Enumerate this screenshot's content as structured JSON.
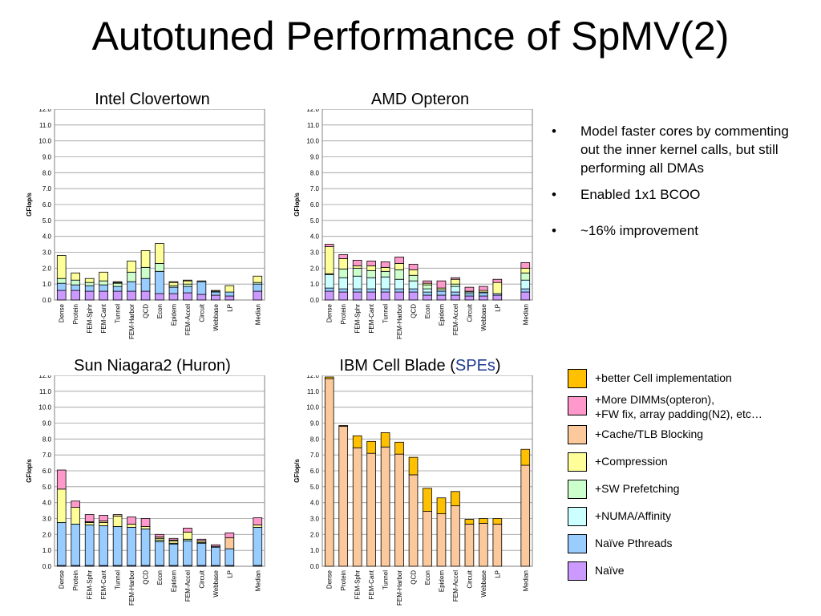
{
  "title": "Autotuned Performance of SpMV(2)",
  "bullets": [
    "Model faster cores by commenting out the inner kernel calls, but still performing all DMAs",
    "Enabled 1x1 BCOO",
    "~16% improvement"
  ],
  "legend": [
    {
      "label": "+better Cell implementation",
      "color": "#ffc000"
    },
    {
      "label": "+More DIMMs(opteron),\n+FW fix, array padding(N2), etc…",
      "color": "#ff99cc"
    },
    {
      "label": "+Cache/TLB Blocking",
      "color": "#fcc99c"
    },
    {
      "label": "+Compression",
      "color": "#ffff99"
    },
    {
      "label": "+SW Prefetching",
      "color": "#ccffcc"
    },
    {
      "label": "+NUMA/Affinity",
      "color": "#ccffff"
    },
    {
      "label": "Naïve Pthreads",
      "color": "#99ccff"
    },
    {
      "label": "Naïve",
      "color": "#cc99ff"
    }
  ],
  "chart_data": [
    {
      "type": "bar",
      "stacked": true,
      "title": "Intel Clovertown",
      "ylabel": "GFlop/s",
      "ylim": [
        0,
        12
      ],
      "grid": true,
      "categories": [
        "Dense",
        "Protein",
        "FEM-Sphr",
        "FEM-Cant",
        "Tunnel",
        "FEM-Harbor",
        "QCD",
        "Econ",
        "Epidem",
        "FEM-Accel",
        "Circuit",
        "Webbase",
        "LP",
        "Median"
      ],
      "series": [
        {
          "name": "Naïve",
          "values": [
            0.6,
            0.6,
            0.55,
            0.55,
            0.55,
            0.55,
            0.55,
            0.4,
            0.4,
            0.45,
            0.35,
            0.3,
            0.25,
            0.55
          ]
        },
        {
          "name": "Naïve Pthreads",
          "values": [
            0.45,
            0.35,
            0.35,
            0.4,
            0.3,
            0.6,
            0.8,
            1.4,
            0.4,
            0.4,
            0.8,
            0.2,
            0.25,
            0.45
          ]
        },
        {
          "name": "+NUMA/Affinity",
          "values": [
            0,
            0,
            0,
            0,
            0,
            0,
            0,
            0,
            0,
            0,
            0,
            0,
            0,
            0
          ]
        },
        {
          "name": "+SW Prefetching",
          "values": [
            0.3,
            0.3,
            0.2,
            0.25,
            0.2,
            0.6,
            0.7,
            0.5,
            0.1,
            0.15,
            0,
            0.05,
            0,
            0.1
          ]
        },
        {
          "name": "+Compression",
          "values": [
            1.45,
            0.45,
            0.25,
            0.55,
            0.05,
            0.7,
            1.05,
            1.25,
            0.2,
            0.2,
            0.05,
            0.05,
            0.4,
            0.4
          ]
        },
        {
          "name": "+Cache/TLB Blocking",
          "values": [
            0,
            0,
            0,
            0,
            0.05,
            0,
            0,
            0,
            0.05,
            0.05,
            0,
            0,
            0,
            0
          ]
        },
        {
          "name": "+More DIMMs(opteron), +FW fix, array padding(N2), etc…",
          "values": [
            0,
            0,
            0,
            0,
            0,
            0,
            0,
            0,
            0,
            0,
            0,
            0,
            0,
            0
          ]
        },
        {
          "name": "+better Cell implementation",
          "values": [
            0,
            0,
            0,
            0,
            0,
            0,
            0,
            0,
            0,
            0,
            0,
            0,
            0,
            0
          ]
        }
      ]
    },
    {
      "type": "bar",
      "stacked": true,
      "title": "AMD Opteron",
      "ylabel": "GFlop/s",
      "ylim": [
        0,
        12
      ],
      "grid": true,
      "categories": [
        "Dense",
        "Protein",
        "FEM-Sphr",
        "FEM-Cant",
        "Tunnel",
        "FEM-Harbor",
        "QCD",
        "Econ",
        "Epidem",
        "FEM-Accel",
        "Circuit",
        "Webbase",
        "LP",
        "Median"
      ],
      "series": [
        {
          "name": "Naïve",
          "values": [
            0.55,
            0.5,
            0.5,
            0.5,
            0.5,
            0.5,
            0.5,
            0.3,
            0.3,
            0.3,
            0.25,
            0.25,
            0.3,
            0.5
          ]
        },
        {
          "name": "Naïve Pthreads",
          "values": [
            0.2,
            0.2,
            0.2,
            0.2,
            0.2,
            0.2,
            0.2,
            0.2,
            0.25,
            0.2,
            0.15,
            0.2,
            0.1,
            0.2
          ]
        },
        {
          "name": "+NUMA/Affinity",
          "values": [
            0.85,
            0.7,
            0.8,
            0.7,
            0.75,
            0.6,
            0.5,
            0.2,
            0.1,
            0.35,
            0.1,
            0.05,
            0,
            0.55
          ]
        },
        {
          "name": "+SW Prefetching",
          "values": [
            0.05,
            0.55,
            0.5,
            0.45,
            0.35,
            0.6,
            0.35,
            0.25,
            0,
            0.15,
            0,
            0,
            0,
            0.45
          ]
        },
        {
          "name": "+Compression",
          "values": [
            1.7,
            0.65,
            0.15,
            0.3,
            0.25,
            0.4,
            0.35,
            0.1,
            0.1,
            0.3,
            0.05,
            0.1,
            0.7,
            0.3
          ]
        },
        {
          "name": "+Cache/TLB Blocking",
          "values": [
            0,
            0,
            0,
            0,
            0,
            0,
            0,
            0,
            0,
            0,
            0,
            0,
            0,
            0
          ]
        },
        {
          "name": "+More DIMMs(opteron), +FW fix, array padding(N2), etc…",
          "values": [
            0.15,
            0.25,
            0.35,
            0.3,
            0.35,
            0.4,
            0.35,
            0.15,
            0.45,
            0.1,
            0.25,
            0.25,
            0.2,
            0.35
          ]
        },
        {
          "name": "+better Cell implementation",
          "values": [
            0,
            0,
            0,
            0,
            0,
            0,
            0,
            0,
            0,
            0,
            0,
            0,
            0,
            0
          ]
        }
      ]
    },
    {
      "type": "bar",
      "stacked": true,
      "title": "Sun Niagara2 (Huron)",
      "ylabel": "GFlop/s",
      "ylim": [
        0,
        12
      ],
      "grid": true,
      "categories": [
        "Dense",
        "Protein",
        "FEM-Sphr",
        "FEM-Cant",
        "Tunnel",
        "FEM-Harbor",
        "QCD",
        "Econ",
        "Epidem",
        "FEM-Accel",
        "Circuit",
        "Webbase",
        "LP",
        "Median"
      ],
      "series": [
        {
          "name": "Naïve",
          "values": [
            0.05,
            0.05,
            0.05,
            0.05,
            0.05,
            0.05,
            0.05,
            0.05,
            0.05,
            0.05,
            0.05,
            0.05,
            0.05,
            0.05
          ]
        },
        {
          "name": "Naïve Pthreads",
          "values": [
            2.7,
            2.6,
            2.55,
            2.5,
            2.45,
            2.4,
            2.3,
            1.5,
            1.35,
            1.55,
            1.4,
            1.15,
            1.05,
            2.4
          ]
        },
        {
          "name": "+NUMA/Affinity",
          "values": [
            0,
            0,
            0,
            0,
            0,
            0,
            0,
            0,
            0,
            0,
            0,
            0,
            0,
            0
          ]
        },
        {
          "name": "+SW Prefetching",
          "values": [
            0,
            0,
            0,
            0,
            0,
            0,
            0,
            0.1,
            0.05,
            0.1,
            0.05,
            0,
            0,
            0
          ]
        },
        {
          "name": "+Compression",
          "values": [
            2.1,
            1.05,
            0.15,
            0.2,
            0.65,
            0.2,
            0.15,
            0.1,
            0.15,
            0.45,
            0.1,
            0.05,
            0,
            0.15
          ]
        },
        {
          "name": "+Cache/TLB Blocking",
          "values": [
            0,
            0,
            0.05,
            0.1,
            0.1,
            0,
            0,
            0.1,
            0.05,
            0,
            0,
            0,
            0.7,
            0
          ]
        },
        {
          "name": "+More DIMMs(opteron), +FW fix, array padding(N2), etc…",
          "values": [
            1.2,
            0.4,
            0.45,
            0.35,
            0,
            0.45,
            0.5,
            0.15,
            0.1,
            0.25,
            0.1,
            0.1,
            0.3,
            0.45
          ]
        },
        {
          "name": "+better Cell implementation",
          "values": [
            0,
            0,
            0,
            0,
            0,
            0,
            0,
            0,
            0,
            0,
            0,
            0,
            0,
            0
          ]
        }
      ]
    },
    {
      "type": "bar",
      "stacked": true,
      "title": "IBM Cell Blade (SPEs)",
      "ylabel": "GFlop/s",
      "ylim": [
        0,
        12
      ],
      "grid": true,
      "categories": [
        "Dense",
        "Protein",
        "FEM-Sphr",
        "FEM-Cant",
        "Tunnel",
        "FEM-Harbor",
        "QCD",
        "Econ",
        "Epidem",
        "FEM-Accel",
        "Circuit",
        "Webbase",
        "LP",
        "Median"
      ],
      "series": [
        {
          "name": "Naïve",
          "values": [
            0,
            0,
            0,
            0,
            0,
            0,
            0,
            0,
            0,
            0,
            0,
            0,
            0,
            0
          ]
        },
        {
          "name": "Naïve Pthreads",
          "values": [
            0,
            0,
            0,
            0,
            0,
            0,
            0,
            0,
            0,
            0,
            0,
            0,
            0,
            0
          ]
        },
        {
          "name": "+NUMA/Affinity",
          "values": [
            0,
            0,
            0,
            0,
            0,
            0,
            0,
            0,
            0,
            0,
            0,
            0,
            0,
            0
          ]
        },
        {
          "name": "+SW Prefetching",
          "values": [
            0,
            0,
            0,
            0,
            0,
            0,
            0,
            0,
            0,
            0,
            0,
            0,
            0,
            0
          ]
        },
        {
          "name": "+Compression",
          "values": [
            0,
            0,
            0,
            0,
            0,
            0,
            0,
            0,
            0,
            0,
            0,
            0,
            0,
            0
          ]
        },
        {
          "name": "+Cache/TLB Blocking",
          "values": [
            11.8,
            8.8,
            7.45,
            7.1,
            7.5,
            7.05,
            5.75,
            3.45,
            3.3,
            3.8,
            2.65,
            2.7,
            2.65,
            6.35
          ]
        },
        {
          "name": "+More DIMMs(opteron), +FW fix, array padding(N2), etc…",
          "values": [
            0,
            0,
            0,
            0,
            0,
            0,
            0,
            0,
            0,
            0,
            0,
            0,
            0,
            0
          ]
        },
        {
          "name": "+better Cell implementation",
          "values": [
            0.1,
            0.05,
            0.75,
            0.75,
            0.9,
            0.75,
            1.1,
            1.45,
            1.0,
            0.9,
            0.3,
            0.3,
            0.35,
            1.0
          ]
        }
      ]
    }
  ]
}
